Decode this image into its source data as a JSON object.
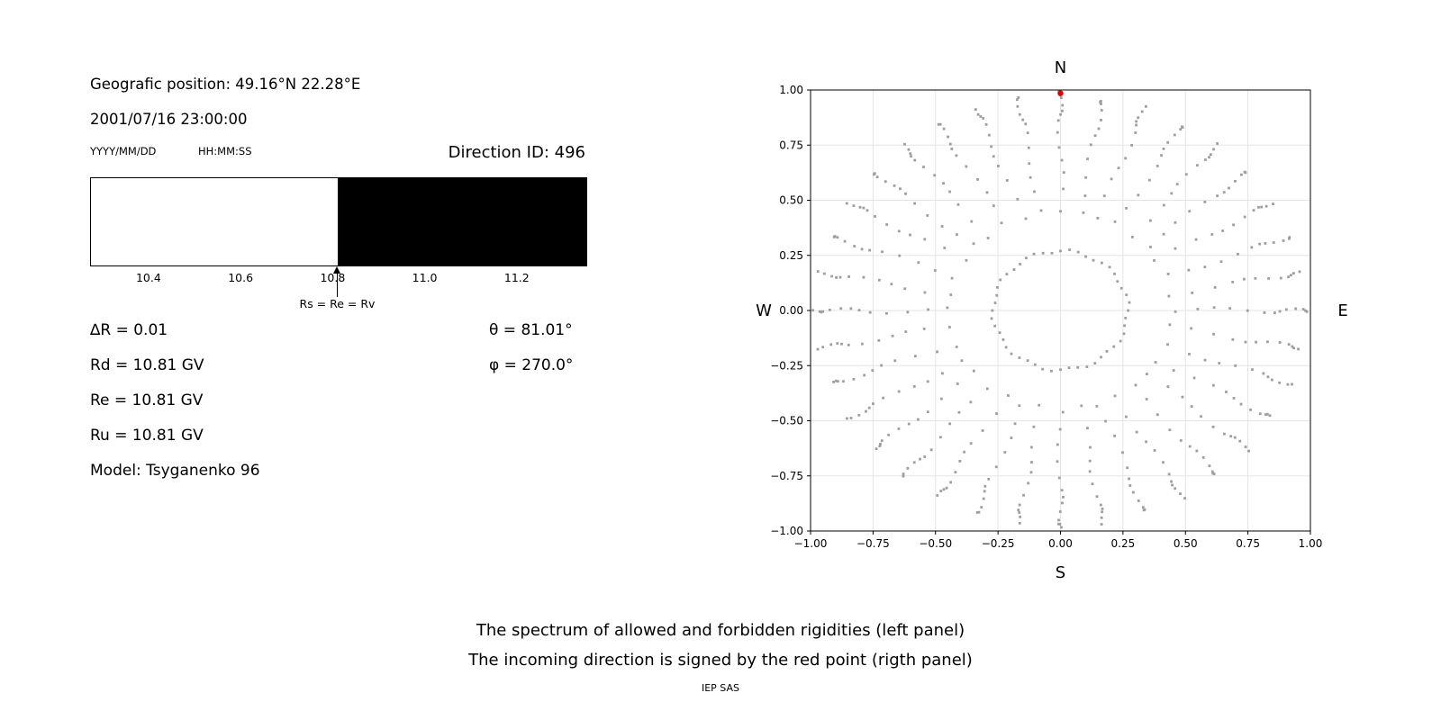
{
  "left_panel": {
    "geo_position": "Geografic position: 49.16°N 22.28°E",
    "datetime": "2001/07/16 23:00:00",
    "date_format": "YYYY/MM/DD",
    "time_format": "HH:MM:SS",
    "direction_id": "Direction ID: 496",
    "params": {
      "delta_r": "∆R = 0.01",
      "rd": "Rd = 10.81 GV",
      "re": "Re = 10.81 GV",
      "ru": "Ru = 10.81 GV",
      "model": "Model: Tsyganenko 96",
      "theta": "θ = 81.01°",
      "phi": "φ = 270.0°"
    }
  },
  "captions": {
    "line1": "The spectrum of allowed and forbidden rigidities (left panel)",
    "line2": "The incoming direction is signed by the red point (rigth panel)",
    "credit": "IEP SAS"
  },
  "chart_data": [
    {
      "type": "bar",
      "subtype": "allowed-forbidden-rigidity-spectrum",
      "xlim": [
        10.273,
        11.349
      ],
      "x_tick_values": [
        10.4,
        10.6,
        10.8,
        11.0,
        11.2
      ],
      "x_tick_labels": [
        "10.4",
        "10.6",
        "10.8",
        "11.0",
        "11.2"
      ],
      "boundary_rigidity": 10.81,
      "allowed_region": {
        "from": 10.273,
        "to": 10.81,
        "color": "#ffffff",
        "label": "allowed"
      },
      "forbidden_region": {
        "from": 10.81,
        "to": 11.349,
        "color": "#000000",
        "label": "forbidden"
      },
      "annotation": {
        "text": "Rs = Re = Rv",
        "x": 10.81
      },
      "xlabel": "",
      "ylabel": ""
    },
    {
      "type": "scatter",
      "xlim": [
        -1.0,
        1.0
      ],
      "ylim": [
        -1.0,
        1.0
      ],
      "tick_values": [
        -1.0,
        -0.75,
        -0.5,
        -0.25,
        0.0,
        0.25,
        0.5,
        0.75,
        1.0
      ],
      "tick_labels": [
        "−1.00",
        "−0.75",
        "−0.50",
        "−0.25",
        "0.00",
        "0.25",
        "0.50",
        "0.75",
        "1.00"
      ],
      "compass": {
        "top": "N",
        "bottom": "S",
        "left": "W",
        "right": "E"
      },
      "grid": true,
      "grid_color": "#e5e5e5",
      "spine_color": "#000000",
      "dot_color": "#9e9e9e",
      "dot_pattern": {
        "description": "asymptotic-direction dots: radial spokes every 10 degrees densifying toward the rim, plus an inner ring",
        "spoke_count": 36,
        "spoke_step_deg": 10,
        "spoke_radii": [
          0.45,
          0.54,
          0.62,
          0.69,
          0.75,
          0.805,
          0.85,
          0.885,
          0.915,
          0.94,
          0.96,
          0.975
        ],
        "cardinal_extra_radius": 0.995,
        "ring": {
          "radius": 0.27,
          "count": 48
        }
      },
      "red_point": {
        "x": 0.0,
        "y": 0.985,
        "color": "#e00000",
        "label": "incoming direction"
      }
    }
  ]
}
